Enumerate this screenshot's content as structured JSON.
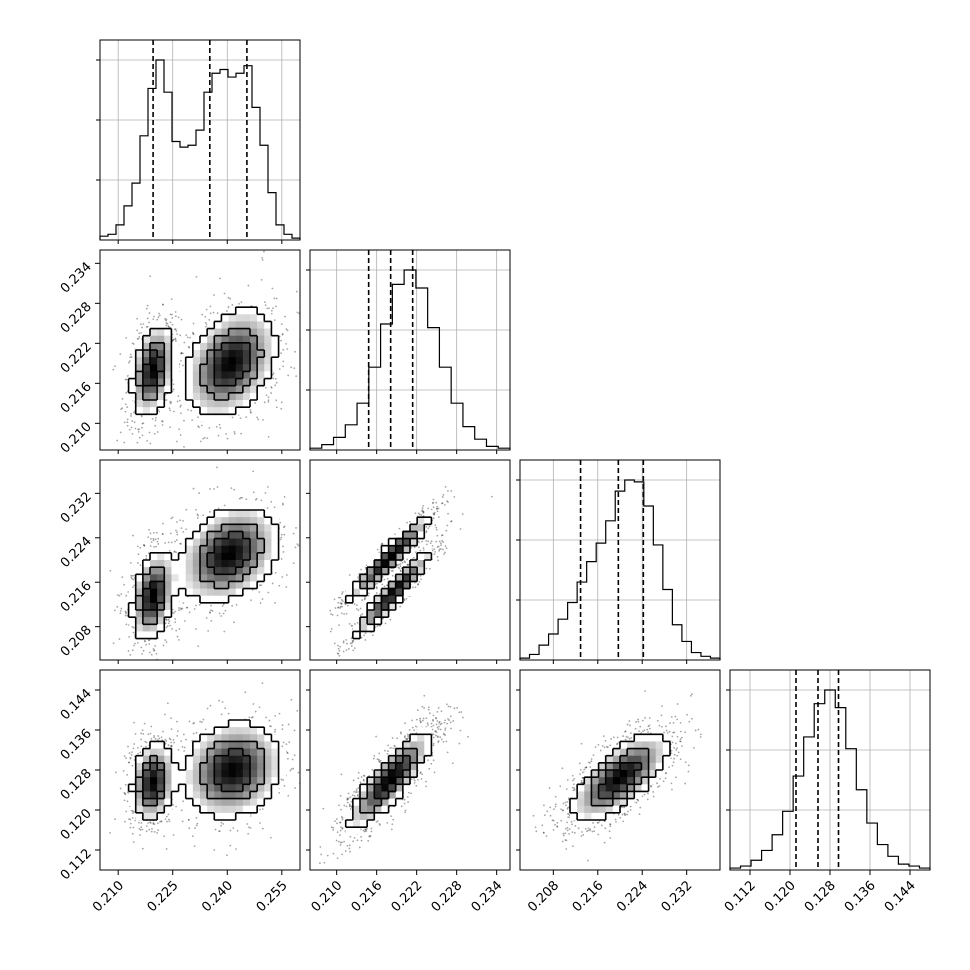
{
  "chart_data": {
    "type": "corner",
    "description_params": 4,
    "colors": {
      "line": "#000000",
      "grid": "#b0b0b0",
      "density": "#000000"
    },
    "grid": true,
    "params": [
      {
        "range": [
          0.205,
          0.26
        ],
        "ticks": [
          "0.210",
          "0.225",
          "0.240",
          "0.255"
        ],
        "tick_values": [
          0.21,
          0.225,
          0.24,
          0.255
        ],
        "quantiles": [
          0.2196,
          0.2352,
          0.2454
        ],
        "histogram": [
          2,
          3,
          8,
          18,
          30,
          55,
          80,
          95,
          78,
          52,
          49,
          50,
          58,
          78,
          88,
          90,
          86,
          88,
          92,
          70,
          50,
          25,
          8,
          3,
          1
        ]
      },
      {
        "range": [
          0.206,
          0.236
        ],
        "ticks": [
          "0.210",
          "0.216",
          "0.222",
          "0.228",
          "0.234"
        ],
        "tick_values": [
          0.21,
          0.216,
          0.222,
          0.228,
          0.234
        ],
        "quantiles": [
          0.2148,
          0.2181,
          0.2214
        ],
        "histogram": [
          1,
          3,
          7,
          14,
          26,
          46,
          70,
          92,
          100,
          90,
          68,
          46,
          26,
          13,
          6,
          2,
          1
        ]
      },
      {
        "range": [
          0.202,
          0.238
        ],
        "ticks": [
          "0.208",
          "0.216",
          "0.224",
          "0.232"
        ],
        "tick_values": [
          0.208,
          0.216,
          0.224,
          0.232
        ],
        "quantiles": [
          0.2129,
          0.2197,
          0.2242
        ],
        "histogram": [
          1,
          3,
          8,
          14,
          22,
          31,
          42,
          53,
          63,
          75,
          91,
          97,
          96,
          83,
          62,
          38,
          19,
          10,
          4,
          2,
          1
        ]
      },
      {
        "range": [
          0.108,
          0.148
        ],
        "ticks": [
          "0.112",
          "0.120",
          "0.128",
          "0.136",
          "0.144"
        ],
        "tick_values": [
          0.112,
          0.12,
          0.128,
          0.136,
          0.144
        ],
        "quantiles": [
          0.1212,
          0.1256,
          0.1297
        ],
        "histogram": [
          1,
          2,
          5,
          10,
          18,
          30,
          48,
          68,
          85,
          92,
          83,
          62,
          41,
          24,
          13,
          7,
          3,
          2,
          1
        ]
      }
    ],
    "pairs": [
      {
        "x": 0,
        "y": 1,
        "rho": 0.35,
        "blobs": [
          [
            0.2195,
            0.218,
            0.003,
            0.0035
          ],
          [
            0.241,
            0.219,
            0.0065,
            0.0042
          ]
        ]
      },
      {
        "x": 0,
        "y": 2,
        "rho": 0.3,
        "blobs": [
          [
            0.2195,
            0.2135,
            0.003,
            0.004
          ],
          [
            0.2405,
            0.221,
            0.007,
            0.0045
          ]
        ]
      },
      {
        "x": 0,
        "y": 3,
        "rho": 0.15,
        "blobs": [
          [
            0.2195,
            0.1255,
            0.003,
            0.004
          ],
          [
            0.2415,
            0.128,
            0.007,
            0.005
          ]
        ]
      },
      {
        "x": 1,
        "y": 2,
        "rho": 0.95,
        "blobs": [
          [
            0.218,
            0.2205,
            0.0032,
            0.004
          ],
          [
            0.2185,
            0.214,
            0.003,
            0.004
          ]
        ]
      },
      {
        "x": 1,
        "y": 3,
        "rho": 0.85,
        "blobs": [
          [
            0.218,
            0.126,
            0.0032,
            0.005
          ]
        ]
      },
      {
        "x": 2,
        "y": 3,
        "rho": 0.7,
        "blobs": [
          [
            0.22,
            0.1265,
            0.0045,
            0.0045
          ]
        ]
      }
    ]
  }
}
